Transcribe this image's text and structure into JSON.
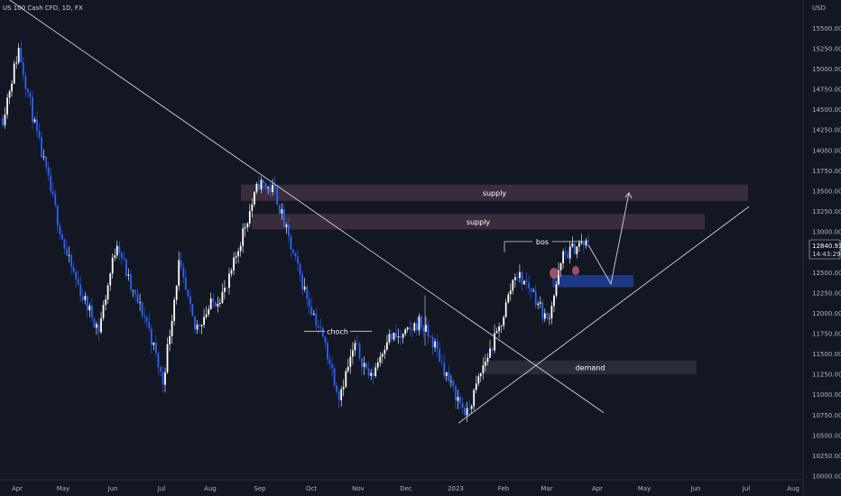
{
  "header": {
    "symbol": "US 100 Cash CFD, 1D, FX"
  },
  "colors": {
    "background": "#131722",
    "axis_text": "#b2b5be",
    "up_candle": "#ffffff",
    "down_candle": "#2962ff",
    "line": "#d1d4dc",
    "supply_zone": "#3b2e3d",
    "demand_zone": "#2a2e39",
    "buy_zone": "#1e3a8a",
    "marker": "#b85a6e"
  },
  "chart_data": {
    "type": "candlestick",
    "currency": "USD",
    "ylim": [
      10000,
      16000
    ],
    "y_ticks": [
      10000,
      10250,
      10500,
      10750,
      11000,
      11250,
      11500,
      11750,
      12000,
      12250,
      12500,
      12750,
      13000,
      13250,
      13500,
      13750,
      14000,
      14250,
      14500,
      14750,
      15000,
      15250,
      15500
    ],
    "y_tick_labels": [
      "10000.00",
      "10250.00",
      "10500.00",
      "10750.00",
      "11000.00",
      "11250.00",
      "11500.00",
      "11750.00",
      "12000.00",
      "12250.00",
      "12500.00",
      "12750.00",
      "13000.00",
      "13250.00",
      "13500.00",
      "13750.00",
      "14000.00",
      "14250.00",
      "14500.00",
      "14750.00",
      "15000.00",
      "15250.00",
      "15500.00"
    ],
    "x_ticks": [
      "Apr",
      "May",
      "Jun",
      "Jul",
      "Aug",
      "Sep",
      "Oct",
      "Nov",
      "Dec",
      "2023",
      "Feb",
      "Mar",
      "Apr",
      "May",
      "Jun",
      "Jul",
      "Aug"
    ],
    "price_tags": {
      "last_price": "12840.93",
      "countdown": "14:43:29"
    },
    "price_path": [
      [
        0,
        14400
      ],
      [
        7,
        15250
      ],
      [
        14,
        14300
      ],
      [
        21,
        13500
      ],
      [
        28,
        12700
      ],
      [
        35,
        12200
      ],
      [
        42,
        11800
      ],
      [
        50,
        12900
      ],
      [
        56,
        12300
      ],
      [
        63,
        11900
      ],
      [
        70,
        11150
      ],
      [
        77,
        12600
      ],
      [
        84,
        11800
      ],
      [
        91,
        12100
      ],
      [
        98,
        12300
      ],
      [
        105,
        13000
      ],
      [
        112,
        13600
      ],
      [
        119,
        13500
      ],
      [
        126,
        12800
      ],
      [
        133,
        12200
      ],
      [
        140,
        11700
      ],
      [
        147,
        11000
      ],
      [
        154,
        11600
      ],
      [
        161,
        11200
      ],
      [
        168,
        11700
      ],
      [
        175,
        11700
      ],
      [
        182,
        11900
      ],
      [
        189,
        11600
      ],
      [
        196,
        11100
      ],
      [
        203,
        10750
      ],
      [
        210,
        11350
      ],
      [
        217,
        11800
      ],
      [
        224,
        12500
      ],
      [
        231,
        12300
      ],
      [
        238,
        11900
      ],
      [
        245,
        12700
      ],
      [
        252,
        12850
      ],
      [
        256,
        12840
      ]
    ],
    "zones": [
      {
        "label": "supply",
        "y_top": 13580,
        "y_bottom": 13380
      },
      {
        "label": "supply",
        "y_top": 13220,
        "y_bottom": 13030
      },
      {
        "label": "demand",
        "y_top": 11420,
        "y_bottom": 11250
      },
      {
        "label": "",
        "y_top": 12470,
        "y_bottom": 12320
      }
    ],
    "structure_labels": [
      {
        "text": "choch",
        "y": 11780
      },
      {
        "text": "bos",
        "y": 12880
      }
    ],
    "trendlines": [
      {
        "name": "descending-trendline",
        "y_start": 15930,
        "y_end": 10780
      },
      {
        "name": "ascending-trendline",
        "y_start": 10650,
        "y_end": 13310
      }
    ],
    "projection": {
      "y_points": [
        12840,
        12360,
        13480
      ]
    }
  }
}
